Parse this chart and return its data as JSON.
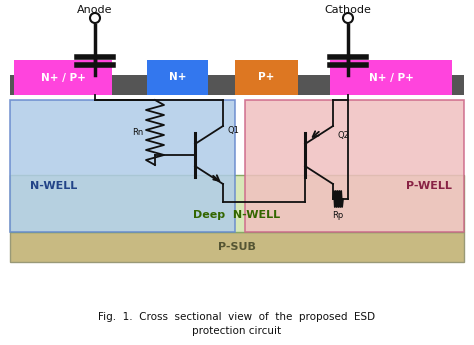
{
  "fig_width": 4.74,
  "fig_height": 3.45,
  "dpi": 100,
  "bg_color": "#ffffff",
  "caption_line1": "Fig.  1.  Cross  sectional  view  of  the  proposed  ESD",
  "caption_line2": "protection circuit",
  "psub_color": "#c8ba82",
  "deep_nwell_color": "#d8e8b8",
  "nwell_color": "#b0cce8",
  "pwell_color": "#f0c0c0",
  "top_bar_color": "#555555",
  "label_np_color": "#ff44dd",
  "label_n_color": "#3377ee",
  "label_p_color": "#dd7722",
  "label_np2_color": "#ff44dd",
  "nwell_text": "N-WELL",
  "pwell_text": "P-WELL",
  "deep_nwell_text": "Deep  N-WELL",
  "psub_text": "P-SUB",
  "anode_text": "Anode",
  "cathode_text": "Cathode",
  "box1_text": "N+ / P+",
  "box2_text": "N+",
  "box3_text": "P+",
  "box4_text": "N+ / P+",
  "q1_text": "Q1",
  "q2_text": "Q2",
  "rn_text": "Rn",
  "rp_text": "Rp"
}
